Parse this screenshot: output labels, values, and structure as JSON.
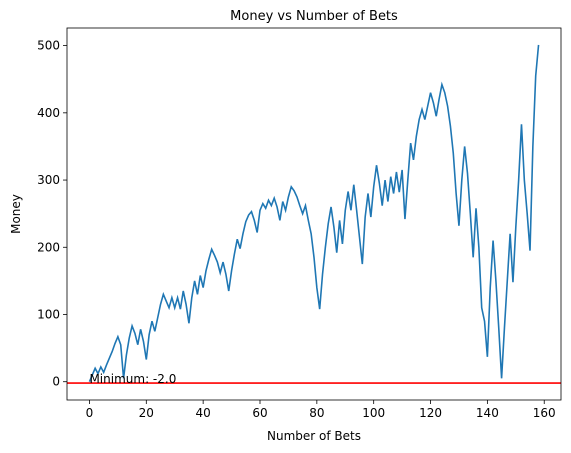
{
  "chart_data": {
    "type": "line",
    "title": "Money vs Number of Bets",
    "xlabel": "Number of Bets",
    "ylabel": "Money",
    "x": [
      0,
      1,
      2,
      3,
      4,
      5,
      6,
      7,
      8,
      9,
      10,
      11,
      12,
      13,
      14,
      15,
      16,
      17,
      18,
      19,
      20,
      21,
      22,
      23,
      24,
      25,
      26,
      27,
      28,
      29,
      30,
      31,
      32,
      33,
      34,
      35,
      36,
      37,
      38,
      39,
      40,
      41,
      42,
      43,
      44,
      45,
      46,
      47,
      48,
      49,
      50,
      51,
      52,
      53,
      54,
      55,
      56,
      57,
      58,
      59,
      60,
      61,
      62,
      63,
      64,
      65,
      66,
      67,
      68,
      69,
      70,
      71,
      72,
      73,
      74,
      75,
      76,
      77,
      78,
      79,
      80,
      81,
      82,
      83,
      84,
      85,
      86,
      87,
      88,
      89,
      90,
      91,
      92,
      93,
      94,
      95,
      96,
      97,
      98,
      99,
      100,
      101,
      102,
      103,
      104,
      105,
      106,
      107,
      108,
      109,
      110,
      111,
      112,
      113,
      114,
      115,
      116,
      117,
      118,
      119,
      120,
      121,
      122,
      123,
      124,
      125,
      126,
      127,
      128,
      129,
      130,
      131,
      132,
      133,
      134,
      135,
      136,
      137,
      138,
      139,
      140,
      141,
      142,
      143,
      144,
      145,
      146,
      147,
      148,
      149,
      150,
      151,
      152,
      153,
      154,
      155,
      156,
      157,
      158
    ],
    "series": [
      {
        "name": "Money",
        "color": "#1f77b4",
        "values": [
          0,
          10,
          20,
          12,
          22,
          14,
          25,
          35,
          45,
          57,
          67,
          55,
          5,
          40,
          65,
          83,
          72,
          55,
          78,
          60,
          33,
          70,
          90,
          75,
          95,
          115,
          130,
          120,
          110,
          125,
          110,
          125,
          108,
          135,
          115,
          87,
          125,
          150,
          130,
          158,
          140,
          165,
          182,
          197,
          188,
          178,
          162,
          178,
          160,
          135,
          165,
          190,
          212,
          198,
          220,
          238,
          248,
          253,
          240,
          222,
          255,
          265,
          258,
          270,
          262,
          273,
          260,
          240,
          268,
          255,
          275,
          290,
          284,
          275,
          262,
          250,
          262,
          240,
          220,
          185,
          140,
          108,
          160,
          200,
          235,
          260,
          230,
          192,
          240,
          205,
          255,
          283,
          255,
          293,
          255,
          215,
          175,
          245,
          280,
          245,
          290,
          322,
          295,
          262,
          300,
          268,
          305,
          280,
          312,
          282,
          315,
          242,
          300,
          355,
          330,
          365,
          390,
          405,
          390,
          410,
          430,
          415,
          395,
          420,
          442,
          430,
          410,
          380,
          340,
          280,
          232,
          300,
          350,
          310,
          250,
          185,
          258,
          200,
          110,
          90,
          37,
          140,
          210,
          150,
          80,
          5,
          80,
          150,
          220,
          148,
          230,
          300,
          383,
          300,
          250,
          195,
          350,
          455,
          501
        ]
      }
    ],
    "hline": {
      "value": -2,
      "color": "#ff0000",
      "label": "Minimum: -2.0"
    },
    "xlim": [
      -7.9,
      165.9
    ],
    "ylim": [
      -27.2,
      526.2
    ],
    "xticks": [
      0,
      20,
      40,
      60,
      80,
      100,
      120,
      140,
      160
    ],
    "yticks": [
      0,
      100,
      200,
      300,
      400,
      500
    ]
  }
}
